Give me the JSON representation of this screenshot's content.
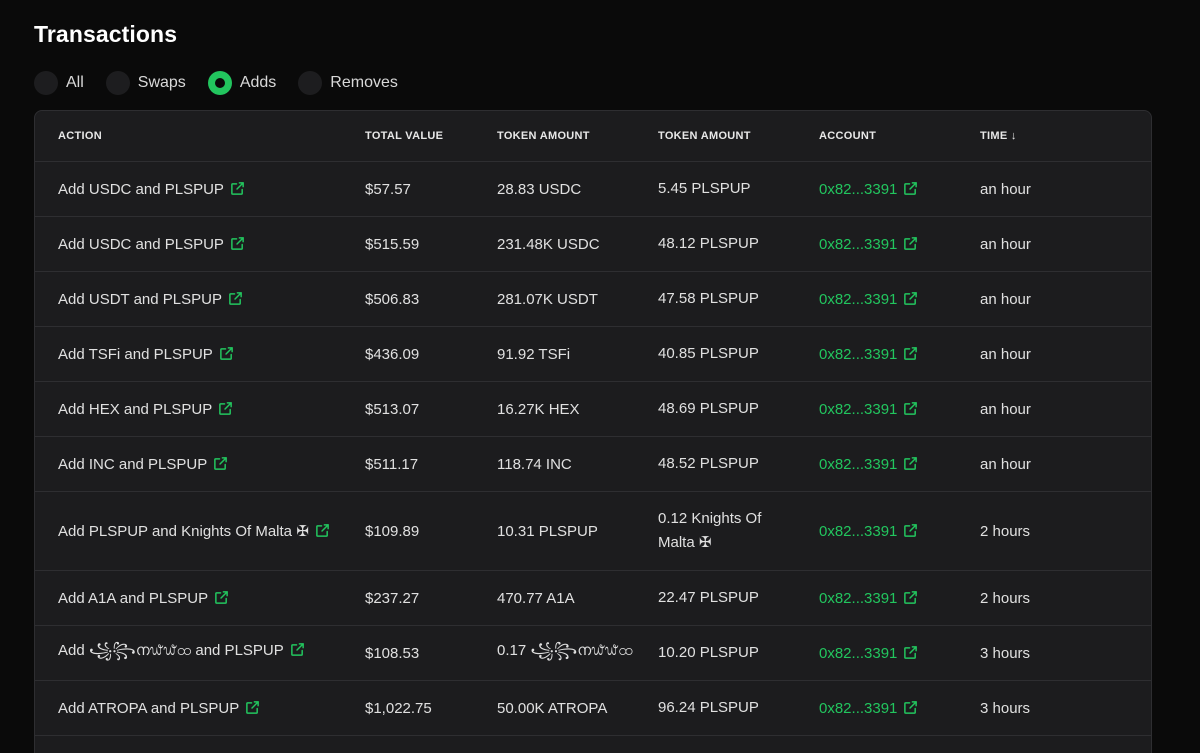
{
  "title": "Transactions",
  "filters": [
    {
      "label": "All",
      "checked": false
    },
    {
      "label": "Swaps",
      "checked": false
    },
    {
      "label": "Adds",
      "checked": true
    },
    {
      "label": "Removes",
      "checked": false
    }
  ],
  "columns": [
    "ACTION",
    "TOTAL VALUE",
    "TOKEN AMOUNT",
    "TOKEN AMOUNT",
    "ACCOUNT",
    "TIME ↓"
  ],
  "rows": [
    {
      "action": "Add USDC and PLSPUP",
      "value": "$57.57",
      "token1": "28.83 USDC",
      "token2": "5.45 PLSPUP",
      "account": "0x82...3391",
      "time": "an hour"
    },
    {
      "action": "Add USDC and PLSPUP",
      "value": "$515.59",
      "token1": "231.48K USDC",
      "token2": "48.12 PLSPUP",
      "account": "0x82...3391",
      "time": "an hour"
    },
    {
      "action": "Add USDT and PLSPUP",
      "value": "$506.83",
      "token1": "281.07K USDT",
      "token2": "47.58 PLSPUP",
      "account": "0x82...3391",
      "time": "an hour"
    },
    {
      "action": "Add TSFi and PLSPUP",
      "value": "$436.09",
      "token1": "91.92 TSFi",
      "token2": "40.85 PLSPUP",
      "account": "0x82...3391",
      "time": "an hour"
    },
    {
      "action": "Add HEX and PLSPUP",
      "value": "$513.07",
      "token1": "16.27K HEX",
      "token2": "48.69 PLSPUP",
      "account": "0x82...3391",
      "time": "an hour"
    },
    {
      "action": "Add INC and PLSPUP",
      "value": "$511.17",
      "token1": "118.74 INC",
      "token2": "48.52 PLSPUP",
      "account": "0x82...3391",
      "time": "an hour"
    },
    {
      "action": "Add PLSPUP and Knights Of Malta ✠",
      "value": "$109.89",
      "token1": "10.31 PLSPUP",
      "token2": "0.12 Knights Of Malta ✠",
      "account": "0x82...3391",
      "time": "2 hours",
      "tall": true
    },
    {
      "action": "Add A1A and PLSPUP",
      "value": "$237.27",
      "token1": "470.77 A1A",
      "token2": "22.47 PLSPUP",
      "account": "0x82...3391",
      "time": "2 hours"
    },
    {
      "action": "Add ꧁꧂ന᭙᭙ထ and PLSPUP",
      "value": "$108.53",
      "token1": "0.17 ꧁꧂ന᭙᭙ထ",
      "token2": "10.20 PLSPUP",
      "account": "0x82...3391",
      "time": "3 hours"
    },
    {
      "action": "Add ATROPA and PLSPUP",
      "value": "$1,022.75",
      "token1": "50.00K ATROPA",
      "token2": "96.24 PLSPUP",
      "account": "0x82...3391",
      "time": "3 hours"
    }
  ],
  "colors": {
    "accent": "#22c55e",
    "background": "#0a0a0a",
    "card": "#1c1c1e"
  }
}
